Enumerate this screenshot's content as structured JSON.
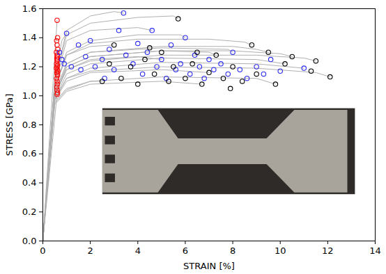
{
  "chart_data": {
    "type": "scatter",
    "xlabel": "STRAIN [%]",
    "ylabel": "STRESS [GPa]",
    "xlim": [
      0,
      14
    ],
    "xticks": [
      0,
      2,
      4,
      6,
      8,
      10,
      12,
      14
    ],
    "ylim": [
      0,
      1.6
    ],
    "yticks": [
      0,
      0.2,
      0.4,
      0.6,
      0.8,
      1,
      1.2,
      1.4,
      1.6
    ],
    "grid": false,
    "series": [
      {
        "type": "line",
        "color": "#b0b0b0",
        "line_style": "solid",
        "x": [
          0,
          0.5,
          1,
          2,
          5,
          9,
          11.5,
          12.1
        ],
        "values": [
          0,
          0.98,
          1.12,
          1.17,
          1.2,
          1.19,
          1.16,
          1.13
        ]
      },
      {
        "type": "line",
        "color": "#b0b0b0",
        "line_style": "solid",
        "x": [
          0,
          0.5,
          1,
          2,
          5,
          9,
          11,
          11.5
        ],
        "values": [
          0,
          1.0,
          1.18,
          1.24,
          1.28,
          1.28,
          1.26,
          1.24
        ]
      },
      {
        "type": "line",
        "color": "#b0b0b0",
        "line_style": "solid",
        "x": [
          0,
          0.5,
          1,
          2,
          5,
          8,
          10,
          10.5
        ],
        "values": [
          0,
          1.0,
          1.2,
          1.27,
          1.31,
          1.31,
          1.29,
          1.27
        ]
      },
      {
        "type": "line",
        "color": "#b0b0b0",
        "line_style": "solid",
        "x": [
          0,
          0.5,
          1,
          2,
          5,
          8,
          9,
          9.5
        ],
        "values": [
          0,
          1.02,
          1.22,
          1.3,
          1.34,
          1.34,
          1.32,
          1.3
        ]
      },
      {
        "type": "line",
        "color": "#b0b0b0",
        "line_style": "solid",
        "x": [
          0,
          0.5,
          1,
          2,
          4,
          7,
          8.5,
          8.8
        ],
        "values": [
          0,
          1.05,
          1.28,
          1.36,
          1.39,
          1.39,
          1.37,
          1.35
        ]
      },
      {
        "type": "line",
        "color": "#b0b0b0",
        "line_style": "solid",
        "x": [
          0,
          0.5,
          1,
          2,
          4,
          5.5,
          5.7
        ],
        "values": [
          0,
          1.1,
          1.42,
          1.5,
          1.54,
          1.55,
          1.53
        ]
      },
      {
        "type": "line",
        "color": "#b0b0b0",
        "line_style": "solid",
        "x": [
          0,
          0.5,
          1,
          2,
          3,
          3.4
        ],
        "values": [
          0,
          1.1,
          1.45,
          1.55,
          1.58,
          1.57
        ]
      },
      {
        "type": "line",
        "color": "#b0b0b0",
        "line_style": "solid",
        "x": [
          0,
          0.5,
          0.8,
          1.0
        ],
        "values": [
          0,
          1.1,
          1.38,
          1.43
        ]
      },
      {
        "type": "line",
        "color": "#b0b0b0",
        "line_style": "solid",
        "x": [
          0,
          0.5,
          1,
          2,
          4,
          5.8,
          6
        ],
        "values": [
          0,
          1.05,
          1.3,
          1.38,
          1.42,
          1.42,
          1.4
        ]
      },
      {
        "type": "line",
        "color": "#b0b0b0",
        "line_style": "solid",
        "x": [
          0,
          0.5,
          1,
          2,
          5,
          7,
          7.3
        ],
        "values": [
          0,
          1.0,
          1.2,
          1.27,
          1.31,
          1.3,
          1.28
        ]
      },
      {
        "type": "line",
        "color": "#b0b0b0",
        "line_style": "solid",
        "x": [
          0,
          0.5,
          1,
          2,
          5,
          9,
          10.2
        ],
        "values": [
          0,
          0.98,
          1.15,
          1.22,
          1.26,
          1.25,
          1.22
        ]
      },
      {
        "type": "line",
        "color": "#b0b0b0",
        "line_style": "solid",
        "x": [
          0,
          0.5,
          1,
          2,
          5,
          9,
          11
        ],
        "values": [
          0,
          0.97,
          1.12,
          1.19,
          1.23,
          1.22,
          1.19
        ]
      },
      {
        "type": "line",
        "color": "#b0b0b0",
        "line_style": "solid",
        "x": [
          0,
          0.5,
          1,
          2,
          5,
          9,
          9.8
        ],
        "values": [
          0,
          0.95,
          1.04,
          1.1,
          1.13,
          1.12,
          1.08
        ]
      },
      {
        "type": "line",
        "color": "#b0b0b0",
        "line_style": "solid",
        "x": [
          0,
          0.5,
          1,
          2,
          5,
          7.8,
          8
        ],
        "values": [
          0,
          1.02,
          1.22,
          1.3,
          1.33,
          1.32,
          1.3
        ]
      },
      {
        "type": "line",
        "color": "#b0b0b0",
        "line_style": "solid",
        "x": [
          0,
          0.5,
          1,
          2,
          4,
          4.6
        ],
        "values": [
          0,
          1.08,
          1.38,
          1.45,
          1.47,
          1.45
        ]
      },
      {
        "type": "line",
        "color": "#b0b0b0",
        "line_style": "solid",
        "x": [
          0,
          0.5,
          1,
          2,
          4,
          5
        ],
        "values": [
          0,
          1.0,
          1.18,
          1.25,
          1.27,
          1.25
        ]
      },
      {
        "type": "line",
        "color": "#b0b0b0",
        "line_style": "solid",
        "x": [
          0,
          0.5,
          1,
          2,
          2.5
        ],
        "values": [
          0,
          0.96,
          1.05,
          1.1,
          1.1
        ]
      },
      {
        "type": "line",
        "color": "#b0b0b0",
        "line_style": "solid",
        "x": [
          0,
          0.5,
          1,
          2,
          5,
          7
        ],
        "values": [
          0,
          0.97,
          1.1,
          1.16,
          1.18,
          1.16
        ]
      },
      {
        "type": "line",
        "color": "#b0b0b0",
        "line_style": "solid",
        "x": [
          0,
          0.5,
          1,
          2,
          3
        ],
        "values": [
          0,
          1.05,
          1.28,
          1.34,
          1.35
        ]
      },
      {
        "type": "line",
        "color": "#b0b0b0",
        "line_style": "solid",
        "x": [
          0,
          0.5,
          1,
          2,
          5,
          6.7
        ],
        "values": [
          0,
          0.94,
          1.03,
          1.08,
          1.1,
          1.08
        ]
      },
      {
        "type": "line",
        "color": "#b0b0b0",
        "line_style": "solid",
        "x": [
          0,
          0.6
        ],
        "values": [
          0,
          1.52
        ]
      },
      {
        "type": "line",
        "color": "#b0b0b0",
        "line_style": "solid",
        "x": [
          0,
          0.6
        ],
        "values": [
          0,
          1.01
        ]
      },
      {
        "type": "scatter",
        "color": "#ff0000",
        "marker": "circle",
        "x": [
          0.6,
          0.62,
          0.58,
          0.6,
          0.63,
          0.57,
          0.6,
          0.62,
          0.59,
          0.61,
          0.6,
          0.58,
          0.62,
          0.6,
          0.57,
          0.61,
          0.63,
          0.59,
          0.6,
          0.62,
          0.58,
          0.6,
          0.61,
          0.59,
          0.6,
          0.62,
          0.6
        ],
        "values": [
          1.52,
          1.4,
          1.38,
          1.35,
          1.32,
          1.3,
          1.28,
          1.27,
          1.26,
          1.25,
          1.24,
          1.22,
          1.21,
          1.2,
          1.19,
          1.18,
          1.17,
          1.16,
          1.15,
          1.14,
          1.12,
          1.1,
          1.08,
          1.06,
          1.04,
          1.02,
          1.01
        ]
      },
      {
        "type": "scatter",
        "color": "#2b2bef",
        "marker": "circle",
        "x": [
          0.7,
          0.8,
          1.0,
          0.9,
          1.2,
          1.5,
          1.8,
          2.0,
          2.2,
          2.5,
          2.8,
          3.0,
          3.2,
          3.4,
          3.5,
          3.8,
          4.0,
          4.2,
          4.4,
          4.6,
          4.8,
          5.0,
          5.2,
          5.4,
          5.6,
          5.8,
          6.0,
          6.2,
          6.4,
          6.6,
          6.8,
          7.0,
          7.2,
          7.5,
          7.8,
          8.0,
          8.3,
          8.6,
          9.0,
          9.3,
          9.6,
          10.0,
          11.0,
          1.6,
          2.6
        ],
        "values": [
          1.3,
          1.25,
          1.43,
          1.22,
          1.2,
          1.35,
          1.27,
          1.38,
          1.2,
          1.25,
          1.32,
          1.18,
          1.45,
          1.57,
          1.28,
          1.22,
          1.36,
          1.15,
          1.3,
          1.45,
          1.2,
          1.25,
          1.12,
          1.35,
          1.18,
          1.22,
          1.4,
          1.15,
          1.28,
          1.2,
          1.12,
          1.25,
          1.18,
          1.22,
          1.15,
          1.3,
          1.18,
          1.12,
          1.2,
          1.15,
          1.25,
          1.17,
          1.19,
          1.18,
          1.12
        ]
      },
      {
        "type": "scatter",
        "color": "#000000",
        "marker": "circle",
        "x": [
          2.5,
          3.0,
          3.3,
          3.7,
          4.0,
          4.3,
          4.7,
          5.0,
          5.3,
          5.7,
          5.5,
          6.0,
          6.3,
          6.7,
          7.0,
          7.3,
          7.6,
          8.0,
          8.4,
          8.8,
          9.0,
          9.5,
          9.8,
          10.2,
          10.5,
          11.3,
          11.5,
          12.1,
          4.5,
          6.5,
          2.8,
          7.9
        ],
        "values": [
          1.1,
          1.35,
          1.12,
          1.2,
          1.08,
          1.25,
          1.15,
          1.3,
          1.1,
          1.53,
          1.2,
          1.12,
          1.22,
          1.08,
          1.16,
          1.28,
          1.12,
          1.2,
          1.1,
          1.35,
          1.15,
          1.3,
          1.08,
          1.22,
          1.27,
          1.17,
          1.24,
          1.13,
          1.33,
          1.3,
          1.22,
          1.05
        ]
      }
    ]
  }
}
